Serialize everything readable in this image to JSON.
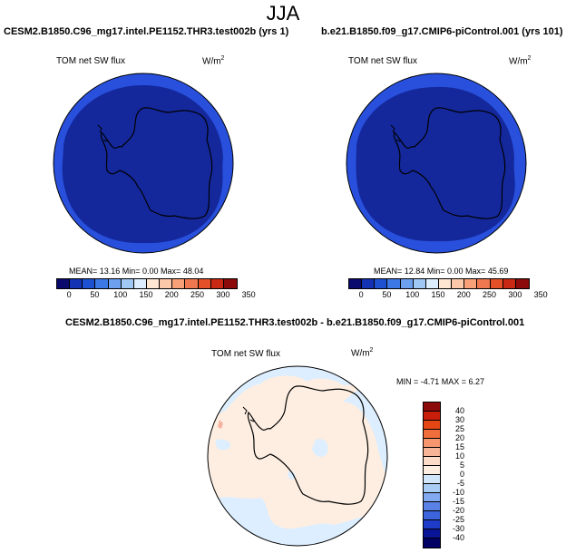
{
  "figure": {
    "season": "JJA"
  },
  "panels": [
    {
      "title": "CESM2.B1850.C96_mg17.intel.PE1152.THR3.test002b (yrs 1)",
      "variable": "TOM net SW flux",
      "units_base": "W/m",
      "units_exp": "2",
      "stats": "MEAN=  13.16  Min=   0.00  Max=  48.04",
      "colorbar_ticks": [
        "0",
        "50",
        "100",
        "150",
        "200",
        "250",
        "300",
        "350"
      ]
    },
    {
      "title": "b.e21.B1850.f09_g17.CMIP6-piControl.001 (yrs 101)",
      "variable": "TOM net SW flux",
      "units_base": "W/m",
      "units_exp": "2",
      "stats": "MEAN=  12.84  Min=   0.00  Max=  45.69",
      "colorbar_ticks": [
        "0",
        "50",
        "100",
        "150",
        "200",
        "250",
        "300",
        "350"
      ]
    },
    {
      "title": "CESM2.B1850.C96_mg17.intel.PE1152.THR3.test002b - b.e21.B1850.f09_g17.CMIP6-piControl.001",
      "variable": "TOM net SW flux",
      "units_base": "W/m",
      "units_exp": "2",
      "stats": "MIN =  -4.71  MAX =   6.27",
      "colorbar_ticks": [
        "40",
        "30",
        "25",
        "20",
        "15",
        "10",
        "5",
        "0",
        "-5",
        "-10",
        "-15",
        "-20",
        "-25",
        "-30",
        "-40"
      ]
    }
  ],
  "colors": {
    "abs_levels": [
      "#0a0a6e",
      "#1432b4",
      "#1e50d2",
      "#3c78e6",
      "#6ea0f0",
      "#a0c8f5",
      "#dceeff",
      "#ffe6d2",
      "#fcc8aa",
      "#f8a078",
      "#f07850",
      "#e65028",
      "#c82814",
      "#8c0a0a"
    ],
    "diff_levels": [
      "#8c0a0a",
      "#c81e0a",
      "#e64614",
      "#f06e3c",
      "#f5966e",
      "#f8b496",
      "#fcdcc8",
      "#fdeee1",
      "#d2e6fa",
      "#aacdf5",
      "#82aaf0",
      "#5a82e6",
      "#3c64dc",
      "#1e3cc8",
      "#0a1496",
      "#000064"
    ],
    "map_outer_band": "#2850dc",
    "map_inner_field": "#14289c",
    "diff_base": "#fdeee1",
    "diff_blue": "#dceeff",
    "diff_red": "#f5b4a0"
  }
}
